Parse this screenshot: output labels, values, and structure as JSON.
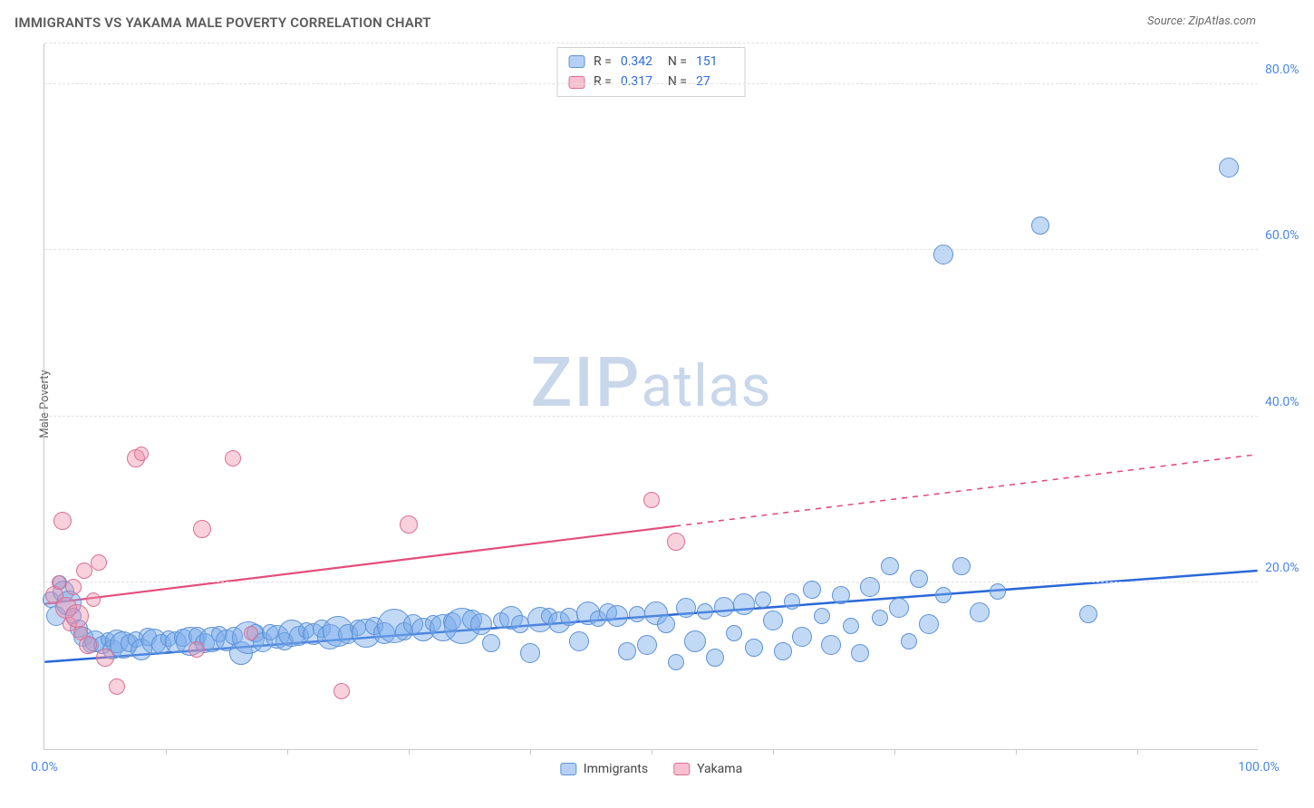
{
  "title": "IMMIGRANTS VS YAKAMA MALE POVERTY CORRELATION CHART",
  "source": "Source: ZipAtlas.com",
  "ylabel": "Male Poverty",
  "watermark_a": "ZIP",
  "watermark_b": "atlas",
  "chart": {
    "type": "scatter",
    "xlim": [
      0,
      100
    ],
    "ylim": [
      0,
      85
    ],
    "x_tick_labels": {
      "0": "0.0%",
      "100": "100.0%"
    },
    "y_tick_labels": {
      "20": "20.0%",
      "40": "40.0%",
      "60": "60.0%",
      "80": "80.0%"
    },
    "x_minor_ticks": [
      10,
      20,
      30,
      40,
      50,
      60,
      70,
      80,
      90
    ],
    "grid_color": "#e2e2e2",
    "grid_dash": "4,4",
    "background_color": "#ffffff",
    "series": [
      {
        "name": "Immigrants",
        "color_fill": "rgba(120,170,235,0.45)",
        "color_stroke": "#5f93d6",
        "trend_color": "#2a68d8",
        "trend": {
          "x1": 0,
          "y1": 10.5,
          "x2": 100,
          "y2": 21.5,
          "dash_after_x": null
        },
        "stats": {
          "R": "0.342",
          "N": "151"
        },
        "points": [
          {
            "x": 0.5,
            "y": 18,
            "r": 9
          },
          {
            "x": 1,
            "y": 16,
            "r": 11
          },
          {
            "x": 1.3,
            "y": 20,
            "r": 8
          },
          {
            "x": 1.6,
            "y": 19,
            "r": 12
          },
          {
            "x": 2,
            "y": 17.5,
            "r": 14
          },
          {
            "x": 2.4,
            "y": 16,
            "r": 9
          },
          {
            "x": 2.8,
            "y": 14.5,
            "r": 10
          },
          {
            "x": 3.2,
            "y": 13.5,
            "r": 11
          },
          {
            "x": 3.8,
            "y": 12.5,
            "r": 9
          },
          {
            "x": 4.2,
            "y": 13,
            "r": 12
          },
          {
            "x": 4.8,
            "y": 12.5,
            "r": 10
          },
          {
            "x": 5.2,
            "y": 13.2,
            "r": 8
          },
          {
            "x": 5.6,
            "y": 12,
            "r": 11
          },
          {
            "x": 6,
            "y": 13,
            "r": 13
          },
          {
            "x": 6.5,
            "y": 12.5,
            "r": 15
          },
          {
            "x": 7,
            "y": 12.8,
            "r": 10
          },
          {
            "x": 7.5,
            "y": 13.2,
            "r": 9
          },
          {
            "x": 8,
            "y": 12,
            "r": 12
          },
          {
            "x": 8.5,
            "y": 13.5,
            "r": 10
          },
          {
            "x": 9,
            "y": 13,
            "r": 14
          },
          {
            "x": 9.6,
            "y": 12.6,
            "r": 11
          },
          {
            "x": 10.2,
            "y": 13.3,
            "r": 9
          },
          {
            "x": 10.8,
            "y": 12.9,
            "r": 12
          },
          {
            "x": 11.4,
            "y": 13.4,
            "r": 10
          },
          {
            "x": 12,
            "y": 13,
            "r": 16
          },
          {
            "x": 12.6,
            "y": 13.6,
            "r": 10
          },
          {
            "x": 13.2,
            "y": 12.8,
            "r": 11
          },
          {
            "x": 13.8,
            "y": 13.2,
            "r": 14
          },
          {
            "x": 14.4,
            "y": 13.8,
            "r": 9
          },
          {
            "x": 15,
            "y": 13.1,
            "r": 12
          },
          {
            "x": 15.6,
            "y": 13.6,
            "r": 10
          },
          {
            "x": 16.2,
            "y": 11.5,
            "r": 13
          },
          {
            "x": 16.8,
            "y": 13.4,
            "r": 18
          },
          {
            "x": 17.4,
            "y": 13.9,
            "r": 10
          },
          {
            "x": 18,
            "y": 12.9,
            "r": 11
          },
          {
            "x": 18.6,
            "y": 14.1,
            "r": 9
          },
          {
            "x": 19.2,
            "y": 13.5,
            "r": 13
          },
          {
            "x": 19.8,
            "y": 13,
            "r": 10
          },
          {
            "x": 20.4,
            "y": 14,
            "r": 15
          },
          {
            "x": 21,
            "y": 13.6,
            "r": 11
          },
          {
            "x": 21.6,
            "y": 14.3,
            "r": 9
          },
          {
            "x": 22.2,
            "y": 13.8,
            "r": 12
          },
          {
            "x": 22.8,
            "y": 14.5,
            "r": 10
          },
          {
            "x": 23.5,
            "y": 13.5,
            "r": 14
          },
          {
            "x": 24.2,
            "y": 14.2,
            "r": 17
          },
          {
            "x": 25,
            "y": 13.8,
            "r": 11
          },
          {
            "x": 25.8,
            "y": 14.6,
            "r": 9
          },
          {
            "x": 26.5,
            "y": 14,
            "r": 16
          },
          {
            "x": 27.2,
            "y": 14.8,
            "r": 10
          },
          {
            "x": 28,
            "y": 13.9,
            "r": 12
          },
          {
            "x": 28.8,
            "y": 14.8,
            "r": 19
          },
          {
            "x": 29.6,
            "y": 14.2,
            "r": 10
          },
          {
            "x": 30.4,
            "y": 15,
            "r": 11
          },
          {
            "x": 31.2,
            "y": 14.4,
            "r": 13
          },
          {
            "x": 32,
            "y": 15.2,
            "r": 9
          },
          {
            "x": 32.8,
            "y": 14.6,
            "r": 15
          },
          {
            "x": 33.6,
            "y": 15.4,
            "r": 10
          },
          {
            "x": 34.4,
            "y": 14.8,
            "r": 20
          },
          {
            "x": 35.2,
            "y": 15.6,
            "r": 11
          },
          {
            "x": 36,
            "y": 15,
            "r": 12
          },
          {
            "x": 36.8,
            "y": 12.8,
            "r": 10
          },
          {
            "x": 37.6,
            "y": 15.5,
            "r": 9
          },
          {
            "x": 38.4,
            "y": 15.8,
            "r": 13
          },
          {
            "x": 39.2,
            "y": 15,
            "r": 10
          },
          {
            "x": 40,
            "y": 11.5,
            "r": 11
          },
          {
            "x": 40.8,
            "y": 15.6,
            "r": 14
          },
          {
            "x": 41.6,
            "y": 16,
            "r": 9
          },
          {
            "x": 42.4,
            "y": 15.3,
            "r": 12
          },
          {
            "x": 43.2,
            "y": 15.9,
            "r": 10
          },
          {
            "x": 44,
            "y": 13,
            "r": 11
          },
          {
            "x": 44.8,
            "y": 16.3,
            "r": 13
          },
          {
            "x": 45.6,
            "y": 15.7,
            "r": 9
          },
          {
            "x": 46.4,
            "y": 16.5,
            "r": 10
          },
          {
            "x": 47.2,
            "y": 16,
            "r": 12
          },
          {
            "x": 48,
            "y": 11.8,
            "r": 10
          },
          {
            "x": 48.8,
            "y": 16.2,
            "r": 9
          },
          {
            "x": 49.6,
            "y": 12.5,
            "r": 11
          },
          {
            "x": 50.4,
            "y": 16.4,
            "r": 13
          },
          {
            "x": 51.2,
            "y": 15,
            "r": 10
          },
          {
            "x": 52,
            "y": 10.5,
            "r": 9
          },
          {
            "x": 52.8,
            "y": 17,
            "r": 11
          },
          {
            "x": 53.6,
            "y": 13,
            "r": 12
          },
          {
            "x": 54.4,
            "y": 16.6,
            "r": 9
          },
          {
            "x": 55.2,
            "y": 11,
            "r": 10
          },
          {
            "x": 56,
            "y": 17.1,
            "r": 11
          },
          {
            "x": 56.8,
            "y": 14,
            "r": 9
          },
          {
            "x": 57.6,
            "y": 17.4,
            "r": 12
          },
          {
            "x": 58.4,
            "y": 12.2,
            "r": 10
          },
          {
            "x": 59.2,
            "y": 18,
            "r": 9
          },
          {
            "x": 60,
            "y": 15.5,
            "r": 11
          },
          {
            "x": 60.8,
            "y": 11.8,
            "r": 10
          },
          {
            "x": 61.6,
            "y": 17.8,
            "r": 9
          },
          {
            "x": 62.4,
            "y": 13.5,
            "r": 11
          },
          {
            "x": 63.2,
            "y": 19.2,
            "r": 10
          },
          {
            "x": 64,
            "y": 16,
            "r": 9
          },
          {
            "x": 64.8,
            "y": 12.5,
            "r": 11
          },
          {
            "x": 65.6,
            "y": 18.5,
            "r": 10
          },
          {
            "x": 66.4,
            "y": 14.8,
            "r": 9
          },
          {
            "x": 67.2,
            "y": 11.5,
            "r": 10
          },
          {
            "x": 68,
            "y": 19.5,
            "r": 11
          },
          {
            "x": 68.8,
            "y": 15.8,
            "r": 9
          },
          {
            "x": 69.6,
            "y": 22,
            "r": 10
          },
          {
            "x": 70.4,
            "y": 17,
            "r": 11
          },
          {
            "x": 71.2,
            "y": 13,
            "r": 9
          },
          {
            "x": 72,
            "y": 20.5,
            "r": 10
          },
          {
            "x": 72.8,
            "y": 15,
            "r": 11
          },
          {
            "x": 74,
            "y": 18.5,
            "r": 9
          },
          {
            "x": 75.5,
            "y": 22,
            "r": 10
          },
          {
            "x": 77,
            "y": 16.5,
            "r": 11
          },
          {
            "x": 78.5,
            "y": 19,
            "r": 9
          },
          {
            "x": 86,
            "y": 16.2,
            "r": 10
          },
          {
            "x": 74,
            "y": 59.5,
            "r": 11
          },
          {
            "x": 82,
            "y": 63,
            "r": 10
          },
          {
            "x": 97.5,
            "y": 70,
            "r": 11
          }
        ]
      },
      {
        "name": "Yakama",
        "color_fill": "rgba(240,140,170,0.40)",
        "color_stroke": "#d87095",
        "trend_color": "#e34d7a",
        "trend": {
          "x1": 0,
          "y1": 17.5,
          "x2": 100,
          "y2": 35.5,
          "dash_after_x": 52
        },
        "stats": {
          "R": "0.317",
          "N": "27"
        },
        "points": [
          {
            "x": 0.8,
            "y": 18.5,
            "r": 10
          },
          {
            "x": 1.2,
            "y": 20,
            "r": 8
          },
          {
            "x": 1.5,
            "y": 27.5,
            "r": 10
          },
          {
            "x": 1.8,
            "y": 17,
            "r": 12
          },
          {
            "x": 2.1,
            "y": 15,
            "r": 8
          },
          {
            "x": 2.4,
            "y": 19.5,
            "r": 9
          },
          {
            "x": 2.7,
            "y": 16,
            "r": 13
          },
          {
            "x": 3.0,
            "y": 14,
            "r": 8
          },
          {
            "x": 3.3,
            "y": 21.5,
            "r": 9
          },
          {
            "x": 3.6,
            "y": 12.5,
            "r": 10
          },
          {
            "x": 4.0,
            "y": 18,
            "r": 8
          },
          {
            "x": 4.5,
            "y": 22.5,
            "r": 9
          },
          {
            "x": 5.0,
            "y": 11,
            "r": 10
          },
          {
            "x": 6.0,
            "y": 7.5,
            "r": 9
          },
          {
            "x": 7.5,
            "y": 35,
            "r": 10
          },
          {
            "x": 8.0,
            "y": 35.5,
            "r": 8
          },
          {
            "x": 12.5,
            "y": 12,
            "r": 9
          },
          {
            "x": 13,
            "y": 26.5,
            "r": 10
          },
          {
            "x": 15.5,
            "y": 35,
            "r": 9
          },
          {
            "x": 17,
            "y": 14,
            "r": 8
          },
          {
            "x": 24.5,
            "y": 7,
            "r": 9
          },
          {
            "x": 30,
            "y": 27,
            "r": 10
          },
          {
            "x": 50,
            "y": 30,
            "r": 9
          },
          {
            "x": 52,
            "y": 25,
            "r": 10
          }
        ]
      }
    ]
  },
  "legend": {
    "items": [
      {
        "label": "Immigrants",
        "class": "blue"
      },
      {
        "label": "Yakama",
        "class": "pink"
      }
    ]
  }
}
